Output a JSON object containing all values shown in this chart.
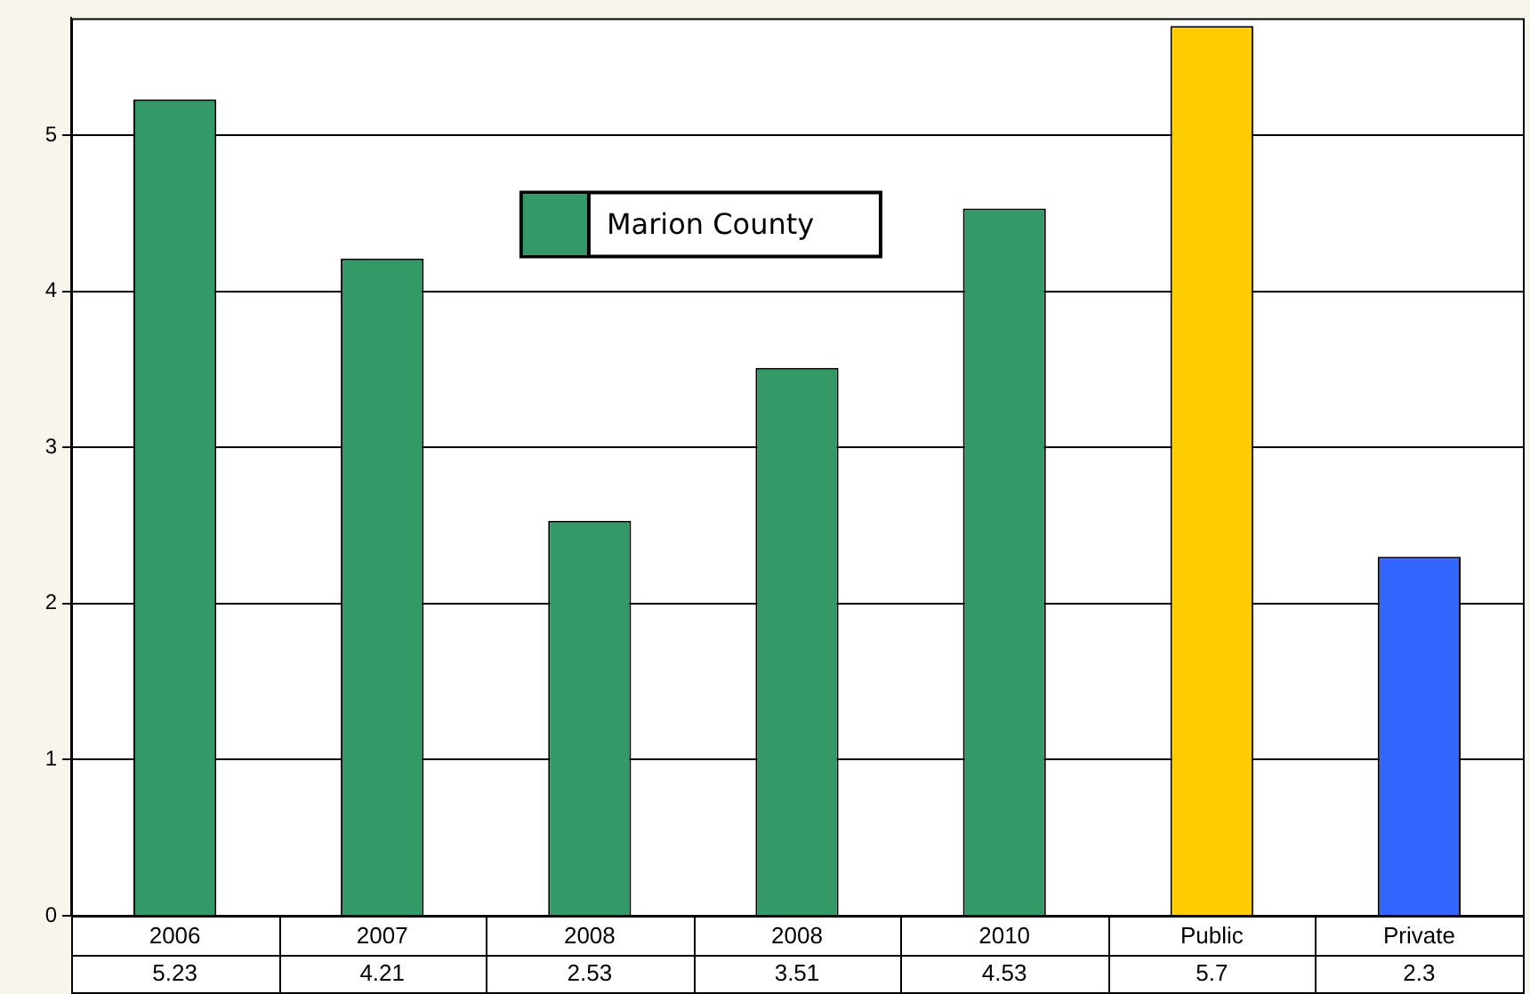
{
  "chart_data": {
    "type": "bar",
    "categories": [
      "2006",
      "2007",
      "2008",
      "2008",
      "2010",
      "Public",
      "Private"
    ],
    "series": [
      {
        "name": "Marion County",
        "color": "#339966",
        "colors": [
          "#339966",
          "#339966",
          "#339966",
          "#339966",
          "#339966",
          "#ffcc00",
          "#3366ff"
        ],
        "values": [
          5.23,
          4.21,
          2.53,
          3.51,
          4.53,
          5.7,
          2.3
        ]
      }
    ],
    "ylim": [
      0,
      5.75
    ],
    "yticks": [
      0,
      1,
      2,
      3,
      4,
      5
    ],
    "grid": "y",
    "legend": "top",
    "data_labels": true
  }
}
